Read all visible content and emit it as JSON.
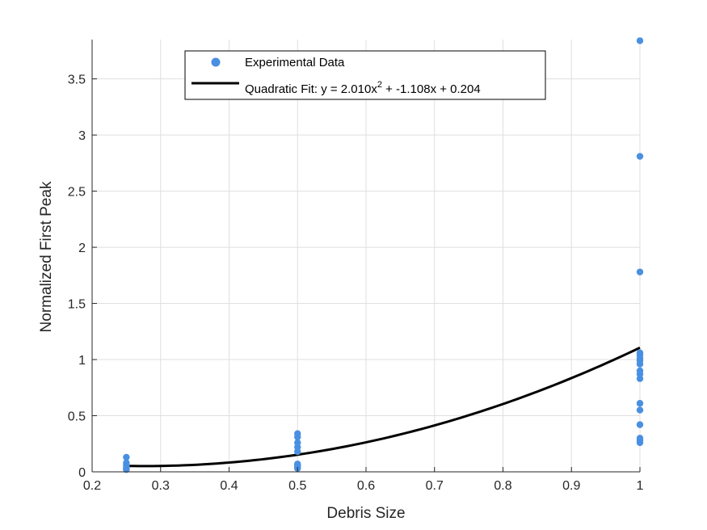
{
  "chart_data": {
    "type": "scatter",
    "xlabel": "Debris Size",
    "ylabel": "Normalized First Peak",
    "xlim": [
      0.2,
      1.0
    ],
    "ylim": [
      0,
      3.85
    ],
    "x_ticks": [
      0.2,
      0.3,
      0.4,
      0.5,
      0.6,
      0.7,
      0.8,
      0.9,
      1.0
    ],
    "x_tick_labels": [
      "0.2",
      "0.3",
      "0.4",
      "0.5",
      "0.6",
      "0.7",
      "0.8",
      "0.9",
      "1"
    ],
    "y_ticks": [
      0,
      0.5,
      1.0,
      1.5,
      2.0,
      2.5,
      3.0,
      3.5
    ],
    "y_tick_labels": [
      "0",
      "0.5",
      "1",
      "1.5",
      "2",
      "2.5",
      "3",
      "3.5"
    ],
    "grid": true,
    "legend_position": "top-center",
    "series": [
      {
        "name": "Experimental Data",
        "kind": "scatter",
        "color": "#4a90e2",
        "x": [
          0.25,
          0.25,
          0.25,
          0.25,
          0.25,
          0.25,
          0.5,
          0.5,
          0.5,
          0.5,
          0.5,
          0.5,
          0.5,
          0.5,
          0.5,
          0.5,
          1.0,
          1.0,
          1.0,
          1.0,
          1.0,
          1.0,
          1.0,
          1.0,
          1.0,
          1.0,
          1.0,
          1.0,
          1.0,
          1.0,
          1.0,
          1.0,
          1.0
        ],
        "y": [
          0.13,
          0.08,
          0.06,
          0.04,
          0.03,
          0.02,
          0.34,
          0.31,
          0.26,
          0.22,
          0.18,
          0.07,
          0.06,
          0.05,
          0.04,
          0.03,
          3.84,
          2.81,
          1.78,
          1.06,
          1.04,
          1.01,
          0.99,
          0.96,
          0.9,
          0.87,
          0.83,
          0.61,
          0.55,
          0.42,
          0.3,
          0.28,
          0.26
        ]
      },
      {
        "name": "Quadratic Fit: y = 2.010x",
        "name_superscript": "2",
        "name_suffix": " + -1.108x + 0.204",
        "kind": "line",
        "color": "#000000",
        "coefficients": {
          "a": 2.01,
          "b": -1.108,
          "c": 0.204
        },
        "x_range": [
          0.25,
          1.0
        ]
      }
    ]
  }
}
